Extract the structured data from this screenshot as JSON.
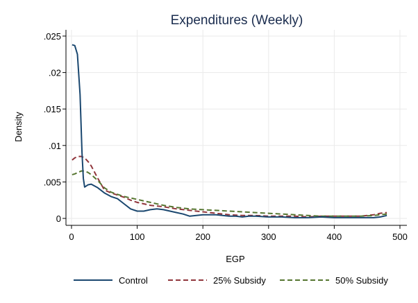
{
  "chart_data": {
    "type": "line",
    "title": "Expenditures (Weekly)",
    "xlabel": "EGP",
    "ylabel": "Density",
    "xlim": [
      0,
      500
    ],
    "ylim": [
      0,
      0.025
    ],
    "x_ticks": [
      0,
      100,
      200,
      300,
      400,
      500
    ],
    "x_tick_labels": [
      "0",
      "100",
      "200",
      "300",
      "400",
      "500"
    ],
    "y_ticks": [
      0,
      0.005,
      0.01,
      0.015,
      0.02,
      0.025
    ],
    "y_tick_labels": [
      "0",
      ".005",
      ".01",
      ".015",
      ".02",
      ".025"
    ],
    "grid": true,
    "legend_position": "bottom",
    "series": [
      {
        "name": "Control",
        "color": "#1a476f",
        "dash": "solid",
        "x": [
          1,
          5,
          9,
          13,
          16,
          18,
          20,
          25,
          30,
          40,
          50,
          60,
          70,
          80,
          90,
          100,
          110,
          120,
          130,
          140,
          150,
          160,
          170,
          180,
          190,
          200,
          210,
          220,
          230,
          240,
          250,
          260,
          270,
          280,
          300,
          320,
          340,
          360,
          380,
          400,
          420,
          440,
          460,
          470,
          480
        ],
        "y": [
          0.0238,
          0.0237,
          0.0225,
          0.017,
          0.009,
          0.0055,
          0.0043,
          0.0046,
          0.0047,
          0.0042,
          0.0035,
          0.003,
          0.0027,
          0.002,
          0.0013,
          0.001,
          0.001,
          0.0012,
          0.0013,
          0.0012,
          0.001,
          0.0008,
          0.0006,
          0.0003,
          0.0004,
          0.0005,
          0.0005,
          0.0005,
          0.0004,
          0.0003,
          0.0003,
          0.0002,
          0.0003,
          0.0003,
          0.0002,
          0.0002,
          0.0001,
          0.0001,
          0.0002,
          0.0001,
          0.0001,
          0.0001,
          0.0001,
          0.0002,
          0.0004
        ]
      },
      {
        "name": "25% Subsidy",
        "color": "#90353b",
        "dash": "dashed",
        "x": [
          1,
          5,
          10,
          15,
          20,
          25,
          30,
          40,
          50,
          60,
          70,
          80,
          90,
          100,
          120,
          140,
          160,
          180,
          200,
          220,
          240,
          260,
          280,
          300,
          320,
          340,
          360,
          380,
          400,
          420,
          440,
          460,
          470,
          480
        ],
        "y": [
          0.008,
          0.0083,
          0.0085,
          0.0085,
          0.0083,
          0.0078,
          0.0072,
          0.0055,
          0.0039,
          0.0035,
          0.0032,
          0.0029,
          0.0025,
          0.0022,
          0.0018,
          0.0016,
          0.0013,
          0.0011,
          0.0009,
          0.0007,
          0.0005,
          0.0004,
          0.0004,
          0.0003,
          0.0003,
          0.0003,
          0.0002,
          0.0003,
          0.0003,
          0.0003,
          0.0003,
          0.0005,
          0.0007,
          0.0008
        ]
      },
      {
        "name": "50% Subsidy",
        "color": "#55752f",
        "dash": "dashed",
        "x": [
          1,
          5,
          10,
          15,
          20,
          25,
          30,
          40,
          50,
          60,
          70,
          80,
          90,
          100,
          120,
          140,
          160,
          180,
          200,
          220,
          240,
          260,
          280,
          300,
          320,
          340,
          360,
          380,
          400,
          420,
          440,
          460,
          470,
          480
        ],
        "y": [
          0.006,
          0.0061,
          0.0063,
          0.0065,
          0.0065,
          0.0063,
          0.006,
          0.0052,
          0.0042,
          0.0036,
          0.0033,
          0.003,
          0.0028,
          0.0026,
          0.0022,
          0.0018,
          0.0015,
          0.0013,
          0.0012,
          0.0011,
          0.001,
          0.0009,
          0.0008,
          0.0007,
          0.0006,
          0.0005,
          0.0004,
          0.0003,
          0.0003,
          0.0003,
          0.0003,
          0.0004,
          0.0005,
          0.0006
        ]
      }
    ]
  }
}
